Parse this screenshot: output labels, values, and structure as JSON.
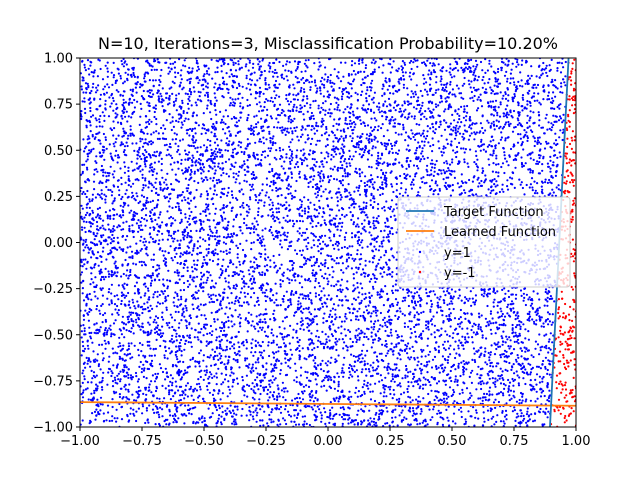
{
  "chart_data": {
    "type": "scatter",
    "title": "N=10, Iterations=3, Misclassification Probability=10.20%",
    "xlabel": "",
    "ylabel": "",
    "xlim": [
      -1.0,
      1.0
    ],
    "ylim": [
      -1.0,
      1.0
    ],
    "xticks": [
      "−1.00",
      "−0.75",
      "−0.50",
      "−0.25",
      "0.00",
      "0.25",
      "0.50",
      "0.75",
      "1.00"
    ],
    "yticks": [
      "−1.00",
      "−0.75",
      "−0.50",
      "−0.25",
      "0.00",
      "0.25",
      "0.50",
      "0.75",
      "1.00"
    ],
    "grid": false,
    "legend_position": "center-right",
    "series": [
      {
        "name": "Target Function",
        "kind": "line",
        "color": "#1f77b4",
        "x": [
          0.895,
          0.97
        ],
        "y": [
          -1.0,
          1.0
        ]
      },
      {
        "name": "Learned Function",
        "kind": "line",
        "color": "#ff7f0e",
        "x": [
          -1.0,
          1.0
        ],
        "y": [
          -0.865,
          -0.885
        ]
      },
      {
        "name": "y=1",
        "kind": "scatter",
        "color": "#0000ff",
        "approx_count": 9300,
        "region": "left of target function"
      },
      {
        "name": "y=-1",
        "kind": "scatter",
        "color": "#ff0000",
        "approx_count": 700,
        "region": "right of target function"
      }
    ]
  }
}
